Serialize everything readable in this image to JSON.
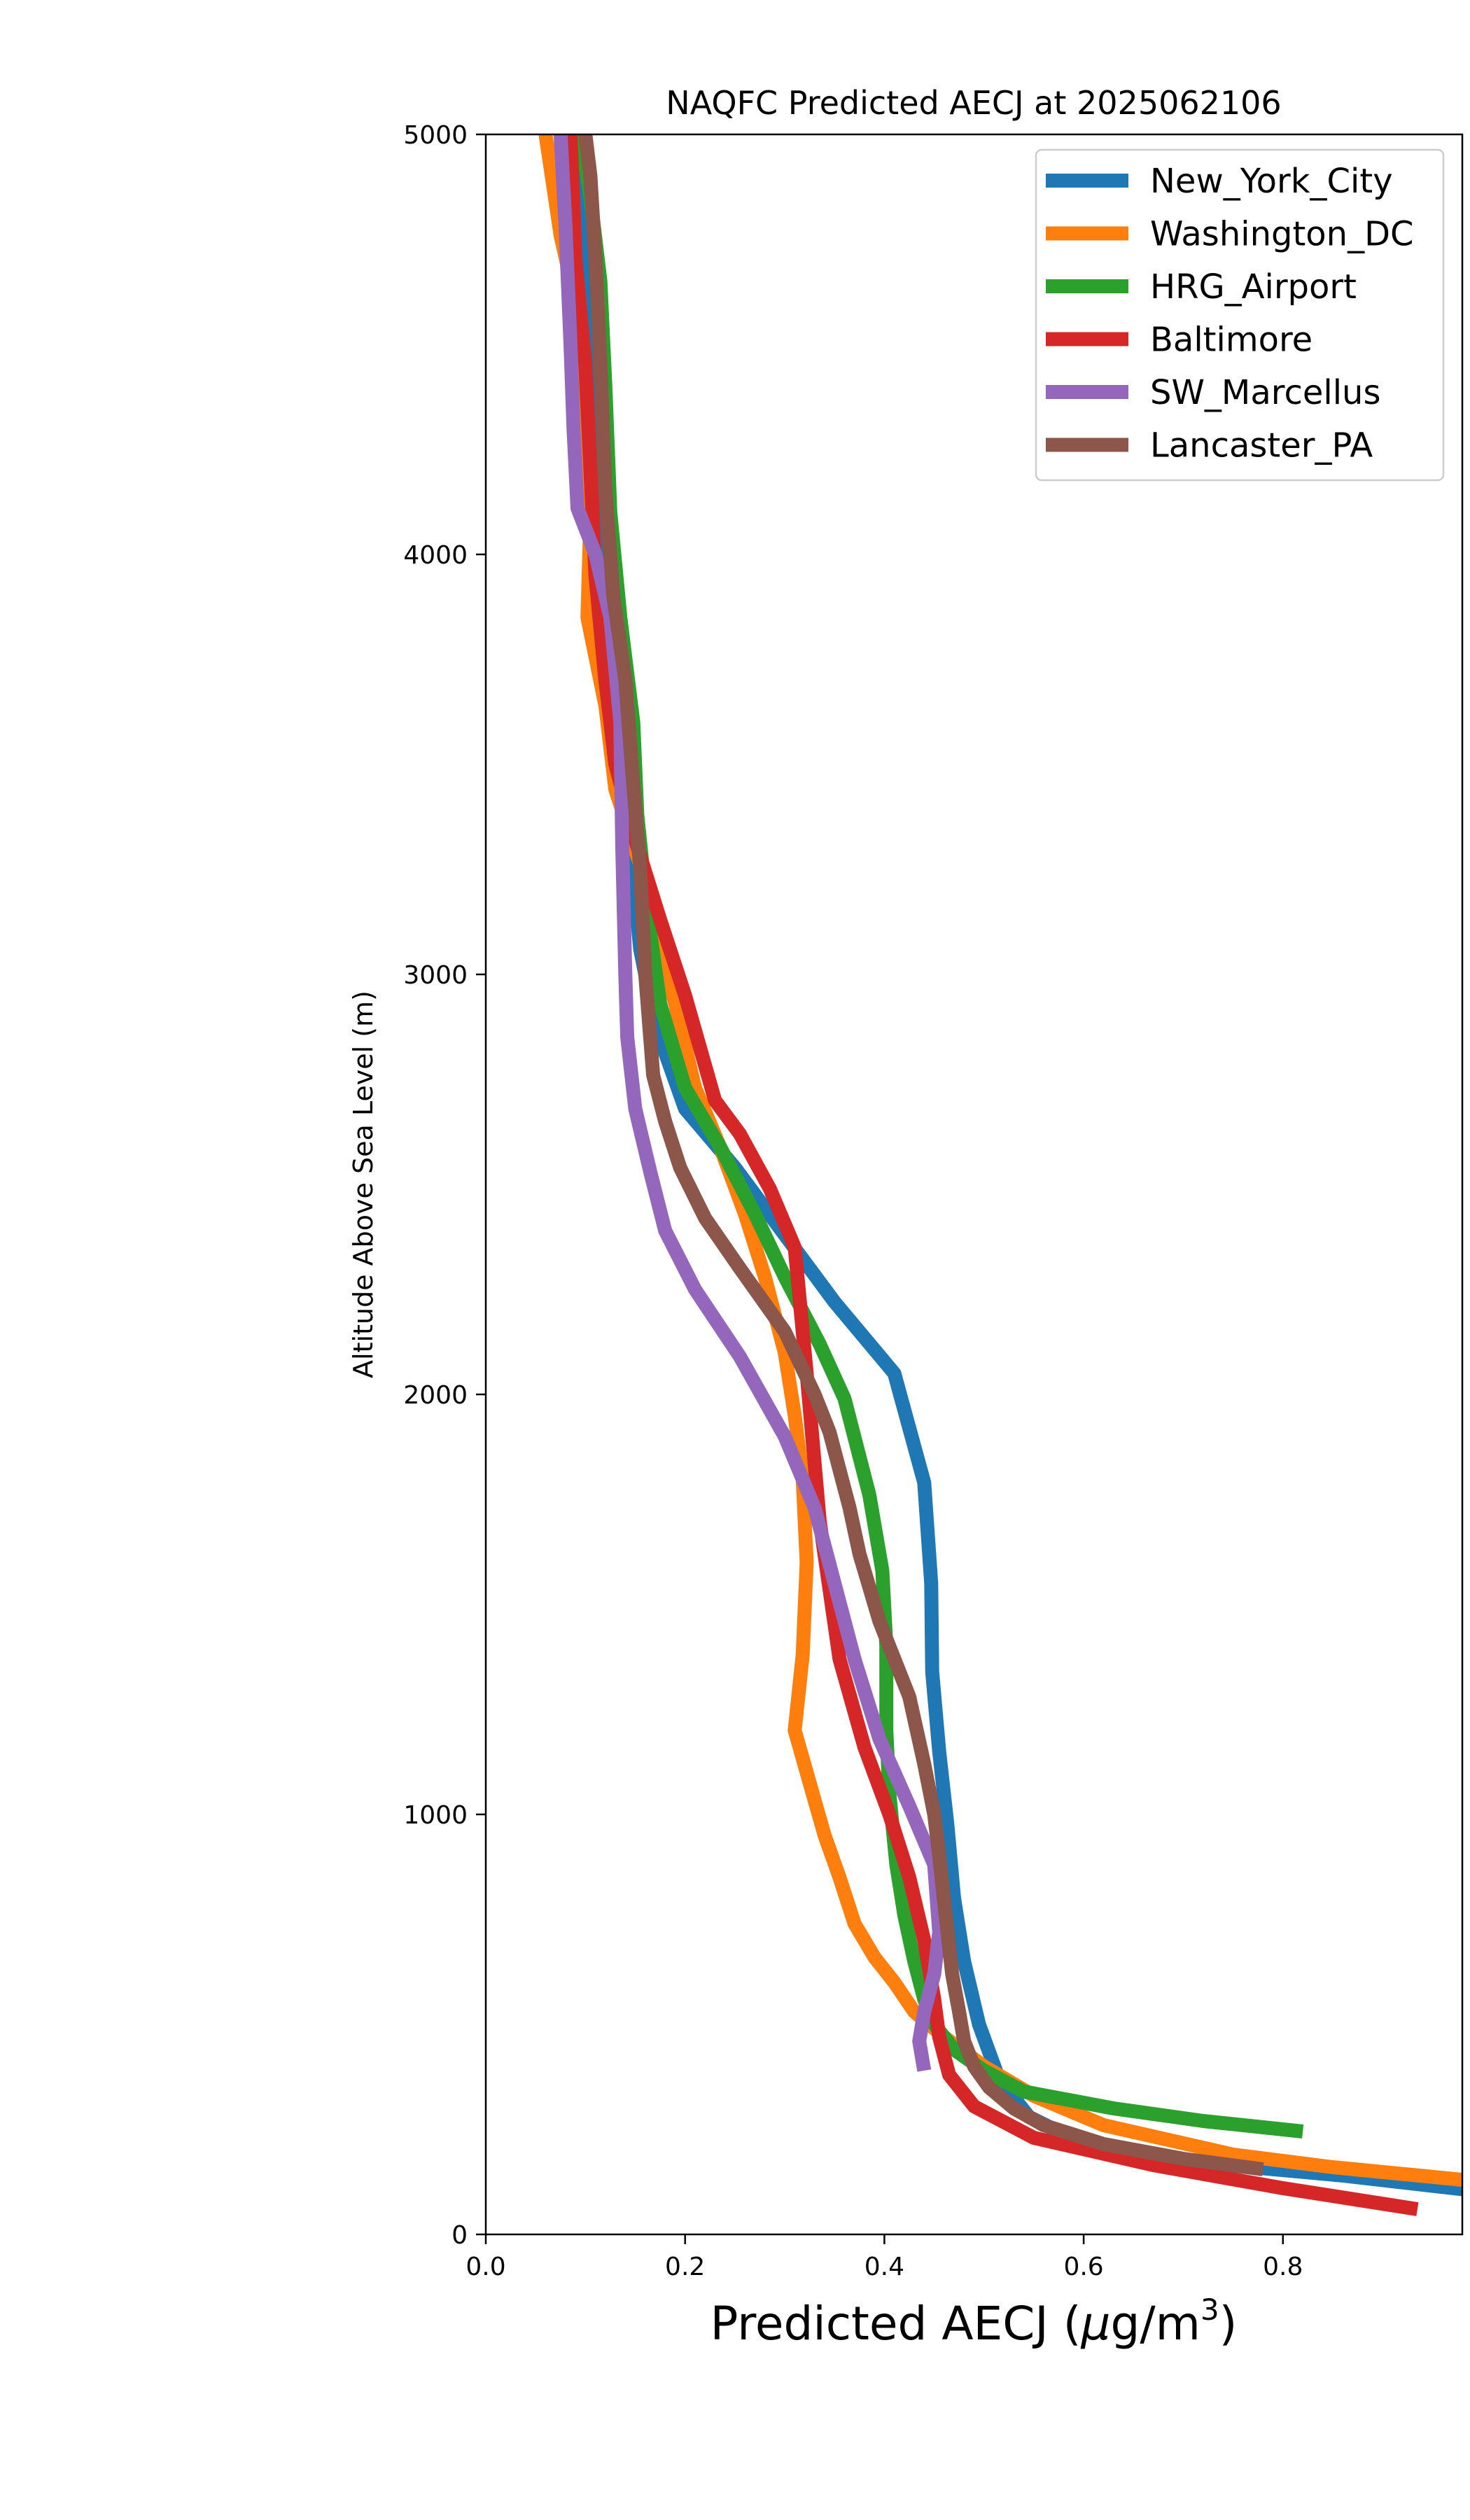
{
  "chart_data": {
    "type": "line",
    "title": "NAQFC Predicted AECJ at 2025062106",
    "xlabel_prefix": "Predicted AECJ (",
    "xlabel_mu": "μ",
    "xlabel_unit": "g/m",
    "xlabel_sup": "3",
    "xlabel_suffix": ")",
    "ylabel": "Altitude Above Sea Level (m)",
    "xlim": [
      0.0,
      0.98
    ],
    "ylim": [
      0,
      5000
    ],
    "xticks": [
      0.0,
      0.2,
      0.4,
      0.6,
      0.8
    ],
    "xtick_labels": [
      "0.0",
      "0.2",
      "0.4",
      "0.6",
      "0.8"
    ],
    "yticks": [
      0,
      1000,
      2000,
      3000,
      4000,
      5000
    ],
    "ytick_labels": [
      "0",
      "1000",
      "2000",
      "3000",
      "4000",
      "5000"
    ],
    "grid": false,
    "legend_position": "top-right",
    "series": [
      {
        "name": "New_York_City",
        "color": "#1f77b4",
        "points": [
          [
            0.99,
            105
          ],
          [
            0.86,
            140
          ],
          [
            0.7,
            175
          ],
          [
            0.6,
            215
          ],
          [
            0.545,
            280
          ],
          [
            0.515,
            370
          ],
          [
            0.495,
            500
          ],
          [
            0.48,
            650
          ],
          [
            0.47,
            800
          ],
          [
            0.463,
            980
          ],
          [
            0.455,
            1150
          ],
          [
            0.448,
            1340
          ],
          [
            0.447,
            1550
          ],
          [
            0.44,
            1790
          ],
          [
            0.41,
            2050
          ],
          [
            0.35,
            2220
          ],
          [
            0.3,
            2380
          ],
          [
            0.25,
            2540
          ],
          [
            0.2,
            2680
          ],
          [
            0.17,
            2880
          ],
          [
            0.155,
            3060
          ],
          [
            0.145,
            3300
          ],
          [
            0.14,
            3600
          ],
          [
            0.128,
            3800
          ],
          [
            0.12,
            4000
          ],
          [
            0.112,
            4300
          ],
          [
            0.105,
            4600
          ],
          [
            0.098,
            4800
          ],
          [
            0.09,
            5000
          ]
        ]
      },
      {
        "name": "Washington_DC",
        "color": "#ff7f0e",
        "points": [
          [
            0.98,
            130
          ],
          [
            0.85,
            160
          ],
          [
            0.75,
            190
          ],
          [
            0.62,
            260
          ],
          [
            0.55,
            330
          ],
          [
            0.5,
            400
          ],
          [
            0.46,
            470
          ],
          [
            0.43,
            530
          ],
          [
            0.41,
            600
          ],
          [
            0.39,
            660
          ],
          [
            0.37,
            740
          ],
          [
            0.355,
            850
          ],
          [
            0.34,
            950
          ],
          [
            0.328,
            1050
          ],
          [
            0.31,
            1200
          ],
          [
            0.318,
            1380
          ],
          [
            0.322,
            1600
          ],
          [
            0.318,
            1800
          ],
          [
            0.31,
            1950
          ],
          [
            0.3,
            2100
          ],
          [
            0.28,
            2280
          ],
          [
            0.26,
            2430
          ],
          [
            0.235,
            2590
          ],
          [
            0.21,
            2730
          ],
          [
            0.19,
            2930
          ],
          [
            0.17,
            3100
          ],
          [
            0.155,
            3260
          ],
          [
            0.13,
            3440
          ],
          [
            0.12,
            3640
          ],
          [
            0.102,
            3850
          ],
          [
            0.105,
            4100
          ],
          [
            0.1,
            4350
          ],
          [
            0.095,
            4550
          ],
          [
            0.075,
            4760
          ],
          [
            0.06,
            5000
          ]
        ]
      },
      {
        "name": "HRG_Airport",
        "color": "#2ca02c",
        "points": [
          [
            0.82,
            245
          ],
          [
            0.72,
            270
          ],
          [
            0.63,
            300
          ],
          [
            0.54,
            340
          ],
          [
            0.5,
            390
          ],
          [
            0.47,
            440
          ],
          [
            0.45,
            500
          ],
          [
            0.44,
            560
          ],
          [
            0.43,
            650
          ],
          [
            0.42,
            760
          ],
          [
            0.412,
            880
          ],
          [
            0.405,
            1050
          ],
          [
            0.402,
            1200
          ],
          [
            0.402,
            1400
          ],
          [
            0.398,
            1580
          ],
          [
            0.385,
            1760
          ],
          [
            0.36,
            1990
          ],
          [
            0.335,
            2120
          ],
          [
            0.3,
            2280
          ],
          [
            0.27,
            2430
          ],
          [
            0.235,
            2590
          ],
          [
            0.2,
            2730
          ],
          [
            0.175,
            2930
          ],
          [
            0.162,
            3150
          ],
          [
            0.152,
            3380
          ],
          [
            0.148,
            3600
          ],
          [
            0.135,
            3850
          ],
          [
            0.125,
            4100
          ],
          [
            0.12,
            4400
          ],
          [
            0.115,
            4650
          ],
          [
            0.105,
            4850
          ],
          [
            0.095,
            5000
          ]
        ]
      },
      {
        "name": "Baltimore",
        "color": "#d62728",
        "points": [
          [
            0.935,
            60
          ],
          [
            0.8,
            110
          ],
          [
            0.67,
            165
          ],
          [
            0.55,
            230
          ],
          [
            0.49,
            305
          ],
          [
            0.465,
            380
          ],
          [
            0.455,
            470
          ],
          [
            0.45,
            560
          ],
          [
            0.44,
            700
          ],
          [
            0.425,
            850
          ],
          [
            0.405,
            1000
          ],
          [
            0.38,
            1160
          ],
          [
            0.355,
            1370
          ],
          [
            0.335,
            1700
          ],
          [
            0.322,
            2050
          ],
          [
            0.31,
            2350
          ],
          [
            0.285,
            2490
          ],
          [
            0.255,
            2620
          ],
          [
            0.23,
            2700
          ],
          [
            0.2,
            2950
          ],
          [
            0.175,
            3130
          ],
          [
            0.15,
            3320
          ],
          [
            0.13,
            3500
          ],
          [
            0.12,
            3700
          ],
          [
            0.11,
            3950
          ],
          [
            0.105,
            4200
          ],
          [
            0.1,
            4450
          ],
          [
            0.09,
            4700
          ],
          [
            0.085,
            5000
          ]
        ]
      },
      {
        "name": "SW_Marcellus",
        "color": "#9467bd",
        "points": [
          [
            0.44,
            390
          ],
          [
            0.435,
            460
          ],
          [
            0.44,
            530
          ],
          [
            0.45,
            620
          ],
          [
            0.455,
            720
          ],
          [
            0.45,
            880
          ],
          [
            0.425,
            1020
          ],
          [
            0.395,
            1180
          ],
          [
            0.37,
            1370
          ],
          [
            0.35,
            1550
          ],
          [
            0.33,
            1730
          ],
          [
            0.3,
            1900
          ],
          [
            0.255,
            2090
          ],
          [
            0.21,
            2250
          ],
          [
            0.18,
            2390
          ],
          [
            0.165,
            2530
          ],
          [
            0.15,
            2680
          ],
          [
            0.142,
            2850
          ],
          [
            0.14,
            3000
          ],
          [
            0.137,
            3300
          ],
          [
            0.135,
            3600
          ],
          [
            0.125,
            3850
          ],
          [
            0.11,
            4000
          ],
          [
            0.092,
            4110
          ],
          [
            0.088,
            4300
          ],
          [
            0.085,
            4500
          ],
          [
            0.08,
            4780
          ],
          [
            0.075,
            5000
          ]
        ]
      },
      {
        "name": "Lancaster_PA",
        "color": "#8c564b",
        "points": [
          [
            0.78,
            155
          ],
          [
            0.7,
            180
          ],
          [
            0.62,
            215
          ],
          [
            0.56,
            260
          ],
          [
            0.53,
            300
          ],
          [
            0.505,
            350
          ],
          [
            0.49,
            400
          ],
          [
            0.48,
            460
          ],
          [
            0.475,
            530
          ],
          [
            0.468,
            620
          ],
          [
            0.462,
            750
          ],
          [
            0.455,
            900
          ],
          [
            0.45,
            1000
          ],
          [
            0.44,
            1120
          ],
          [
            0.425,
            1280
          ],
          [
            0.395,
            1460
          ],
          [
            0.375,
            1620
          ],
          [
            0.365,
            1730
          ],
          [
            0.345,
            1910
          ],
          [
            0.33,
            2000
          ],
          [
            0.3,
            2150
          ],
          [
            0.255,
            2300
          ],
          [
            0.22,
            2420
          ],
          [
            0.195,
            2540
          ],
          [
            0.18,
            2650
          ],
          [
            0.168,
            2760
          ],
          [
            0.16,
            3000
          ],
          [
            0.155,
            3250
          ],
          [
            0.148,
            3450
          ],
          [
            0.14,
            3700
          ],
          [
            0.128,
            3900
          ],
          [
            0.12,
            4150
          ],
          [
            0.115,
            4450
          ],
          [
            0.11,
            4700
          ],
          [
            0.105,
            4900
          ],
          [
            0.1,
            5000
          ]
        ]
      }
    ]
  }
}
